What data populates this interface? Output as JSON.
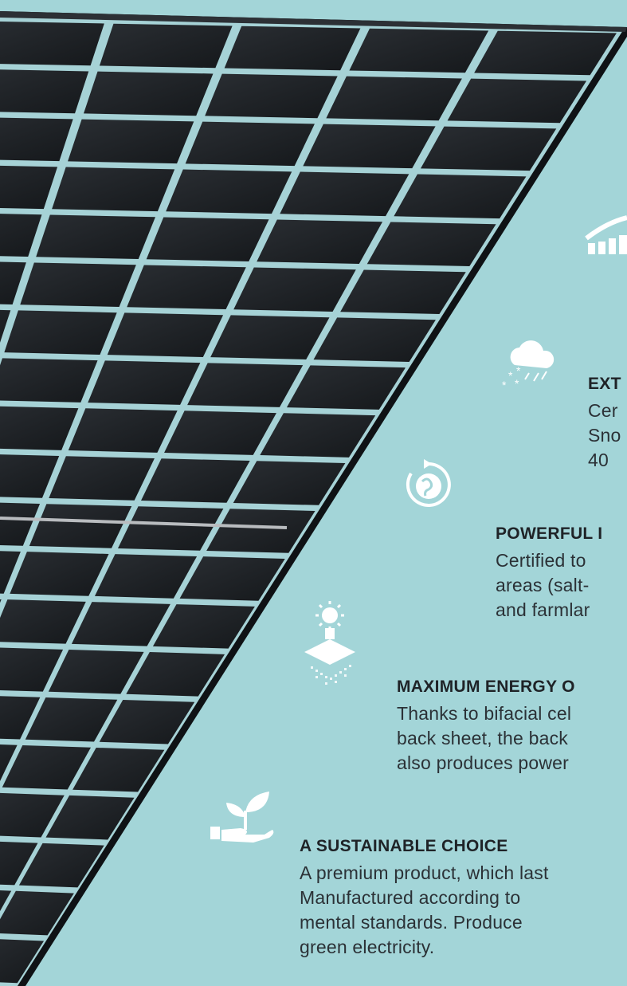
{
  "features": [
    {
      "id": "extreme",
      "heading": "EXT",
      "lines": [
        "Cer",
        "Sno",
        "40"
      ],
      "icon": "cloud-rain-snow-icon"
    },
    {
      "id": "powerful",
      "heading": "POWERFUL I",
      "lines": [
        "Certified to",
        "areas (salt-",
        "and farmlar"
      ],
      "icon": "recycle-globe-icon"
    },
    {
      "id": "maximum",
      "heading": "MAXIMUM ENERGY O",
      "lines": [
        "Thanks to bifacial cel",
        "back sheet, the back",
        "also produces power"
      ],
      "icon": "sun-bifacial-panel-icon"
    },
    {
      "id": "sustainable",
      "heading": "A SUSTAINABLE CHOICE",
      "lines": [
        "A premium product, which last",
        "Manufactured according to",
        "mental standards. Produce",
        "green electricity."
      ],
      "icon": "hand-sprout-icon"
    }
  ],
  "top_icon": "rising-bars-chart-icon",
  "colors": {
    "background": "#a3d5d8",
    "panel_frame": "#111417",
    "cell": "#1d2024",
    "heading_text": "#1f2327",
    "body_text": "#2b3136",
    "icon": "#ffffff"
  }
}
